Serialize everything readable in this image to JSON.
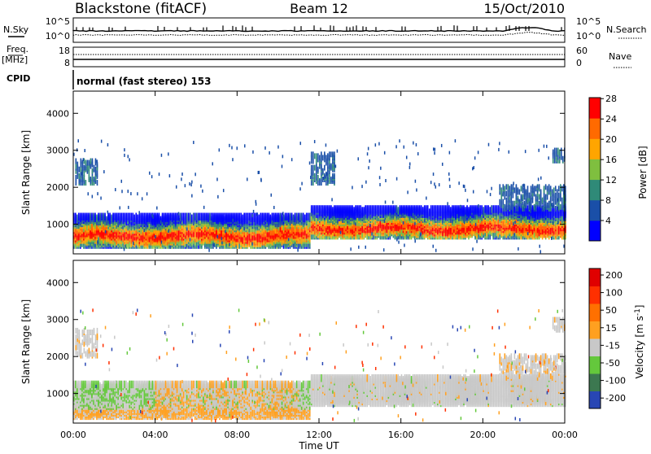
{
  "header": {
    "station": "Blackstone (fitACF)",
    "beam": "Beam 12",
    "date": "15/Oct/2010"
  },
  "top_panels": {
    "nsky_label": "N.Sky",
    "nsky_ticks": [
      "10^5",
      "10^0"
    ],
    "nsearch_label": "N.Search",
    "nsearch_ticks": [
      "10^5",
      "10^0"
    ],
    "freq_label": "Freq.",
    "freq_unit": "[MHz]",
    "freq_ticks": [
      "18",
      "8"
    ],
    "nave_label": "Nave",
    "nave_ticks": [
      "60",
      "0"
    ],
    "cpid_label": "CPID",
    "cpid_text": "normal (fast stereo) 153"
  },
  "chart_data": [
    {
      "type": "heatmap",
      "panel": "power",
      "ylabel": "Slant Range [km]",
      "yticks": [
        "1000",
        "2000",
        "3000",
        "4000"
      ],
      "ylim": [
        200,
        4600
      ],
      "xlim": [
        0,
        24
      ],
      "colorbar_label": "Power [dB]",
      "colorbar_ticks": [
        "4",
        "8",
        "12",
        "16",
        "20",
        "24",
        "28"
      ],
      "colorbar_colors": [
        "#0000ff",
        "#1a4fa8",
        "#2f8a78",
        "#7fbf3f",
        "#ffa500",
        "#ff6a00",
        "#ff0000"
      ],
      "bands": [
        {
          "t0": 0.0,
          "t1": 11.6,
          "r0": 500,
          "r1": 1300,
          "peak": 800
        },
        {
          "t0": 11.6,
          "t1": 24.0,
          "r0": 750,
          "r1": 1500,
          "peak": 1000
        }
      ]
    },
    {
      "type": "heatmap",
      "panel": "velocity",
      "ylabel": "Slant Range [km]",
      "yticks": [
        "1000",
        "2000",
        "3000",
        "4000"
      ],
      "ylim": [
        200,
        4600
      ],
      "xlim": [
        0,
        24
      ],
      "xlabel": "Time UT",
      "xticks": [
        "00:00",
        "04:00",
        "08:00",
        "12:00",
        "16:00",
        "20:00",
        "00:00"
      ],
      "colorbar_label": "Velocity [m s^-1]",
      "colorbar_ticks": [
        "200",
        "100",
        "50",
        "15",
        "-15",
        "-50",
        "-100",
        "-200"
      ],
      "colorbar_colors": [
        "#2846b4",
        "#3c7850",
        "#64c83c",
        "#c8c8c8",
        "#ffa020",
        "#ff7000",
        "#ff3000",
        "#e00000"
      ],
      "bands": [
        {
          "t0": 0.0,
          "t1": 11.6,
          "r0": 450,
          "r1": 1350
        },
        {
          "t0": 11.6,
          "t1": 24.0,
          "r0": 800,
          "r1": 1500
        }
      ]
    }
  ]
}
